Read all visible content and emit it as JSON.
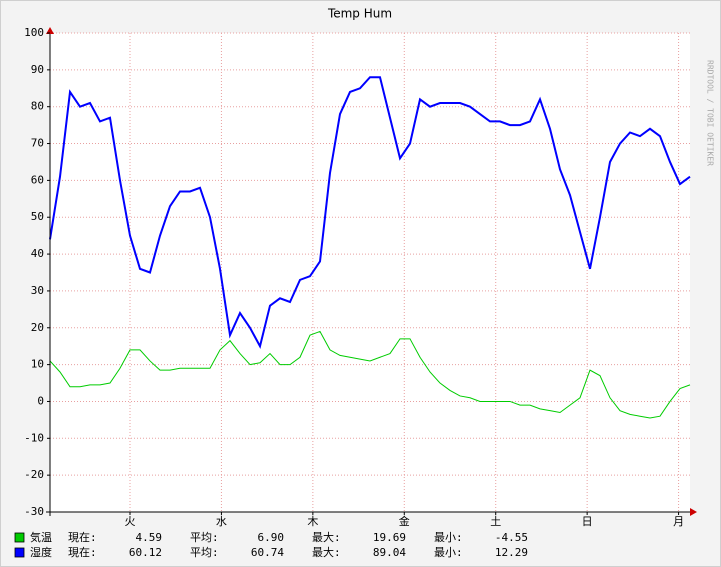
{
  "chart_data": {
    "type": "line",
    "title": "Temp Hum",
    "watermark": "RRDTOOL / TOBI OETIKER",
    "x": [
      0,
      2.625,
      5.25,
      7.875,
      10.5,
      13.125,
      15.75,
      18.375,
      21,
      23.625,
      26.25,
      28.875,
      31.5,
      34.125,
      36.75,
      39.375,
      42,
      44.625,
      47.25,
      49.875,
      52.5,
      55.125,
      57.75,
      60.375,
      63,
      65.625,
      68.25,
      70.875,
      73.5,
      76.125,
      78.75,
      81.375,
      84,
      86.625,
      89.25,
      91.875,
      94.5,
      97.125,
      99.75,
      102.375,
      105,
      107.625,
      110.25,
      112.875,
      115.5,
      118.125,
      120.75,
      123.375,
      126,
      128.625,
      131.25,
      133.875,
      136.5,
      139.125,
      141.75,
      144.375,
      147,
      149.625,
      152.25,
      154.875,
      157.5,
      160.125,
      162.75,
      165.375,
      168
    ],
    "xlim": [
      0,
      168
    ],
    "xticks": [
      {
        "value": 21,
        "label": "火"
      },
      {
        "value": 45,
        "label": "水"
      },
      {
        "value": 69,
        "label": "木"
      },
      {
        "value": 93,
        "label": "金"
      },
      {
        "value": 117,
        "label": "土"
      },
      {
        "value": 141,
        "label": "日"
      },
      {
        "value": 165,
        "label": "月"
      }
    ],
    "ylim": [
      -30,
      100
    ],
    "yticks": [
      -30,
      -20,
      -10,
      0,
      10,
      20,
      30,
      40,
      50,
      60,
      70,
      80,
      90,
      100
    ],
    "grid": true,
    "series": [
      {
        "name": "気温",
        "color": "#00cc00",
        "values": [
          11,
          8,
          4,
          4,
          4.5,
          4.5,
          5,
          9,
          14,
          14,
          11,
          8.5,
          8.5,
          9,
          9,
          9,
          9,
          14,
          16.5,
          13,
          10,
          10.5,
          13,
          10,
          10,
          12,
          18,
          19,
          14,
          12.5,
          12,
          11.5,
          11,
          12,
          13,
          17,
          17,
          12,
          8,
          5,
          3,
          1.5,
          1,
          0,
          0,
          0,
          0,
          -1,
          -1,
          -2,
          -2.5,
          -3,
          -1,
          1,
          8.5,
          7,
          1,
          -2.5,
          -3.5,
          -4,
          -4.5,
          -4,
          0,
          3.5,
          4.5
        ],
        "stats": [
          {
            "label": "現在:",
            "value": "4.59"
          },
          {
            "label": "平均:",
            "value": "6.90"
          },
          {
            "label": "最大:",
            "value": "19.69"
          },
          {
            "label": "最小:",
            "value": "-4.55"
          }
        ]
      },
      {
        "name": "湿度",
        "color": "#0000ff",
        "values": [
          44,
          61,
          84,
          80,
          81,
          76,
          77,
          60,
          45,
          36,
          35,
          45,
          53,
          57,
          57,
          58,
          50,
          36,
          18,
          24,
          20,
          15,
          26,
          28,
          27,
          33,
          34,
          38,
          62,
          78,
          84,
          85,
          88,
          88,
          77,
          66,
          70,
          82,
          80,
          81,
          81,
          81,
          80,
          78,
          76,
          76,
          75,
          75,
          76,
          82,
          74,
          63,
          56,
          46,
          36,
          50,
          65,
          70,
          73,
          72,
          74,
          72,
          65,
          59,
          61
        ],
        "stats": [
          {
            "label": "現在:",
            "value": "60.12"
          },
          {
            "label": "平均:",
            "value": "60.74"
          },
          {
            "label": "最大:",
            "value": "89.04"
          },
          {
            "label": "最小:",
            "value": "12.29"
          }
        ]
      }
    ]
  }
}
